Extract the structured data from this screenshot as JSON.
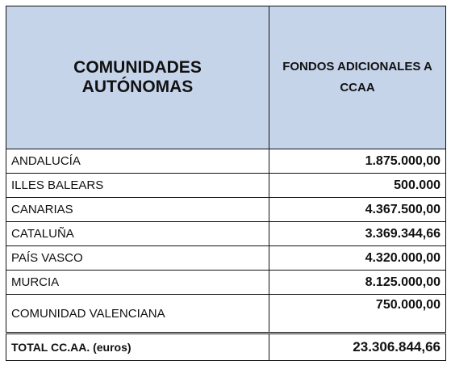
{
  "header": {
    "columns": [
      "COMUNIDADES AUTÓNOMAS",
      "FONDOS ADICIONALES A CCAA"
    ]
  },
  "table": {
    "rows": [
      [
        "ANDALUCÍA",
        "1.875.000,00"
      ],
      [
        "ILLES BALEARS",
        "500.000"
      ],
      [
        "CANARIAS",
        "4.367.500,00"
      ],
      [
        "CATALUÑA",
        "3.369.344,66"
      ],
      [
        "PAÍS VASCO",
        "4.320.000,00"
      ],
      [
        "MURCIA",
        "8.125.000,00"
      ],
      [
        "COMUNIDAD VALENCIANA",
        "750.000,00"
      ]
    ]
  },
  "total": [
    "TOTAL CC.AA. (euros)",
    "23.306.844,66"
  ]
}
